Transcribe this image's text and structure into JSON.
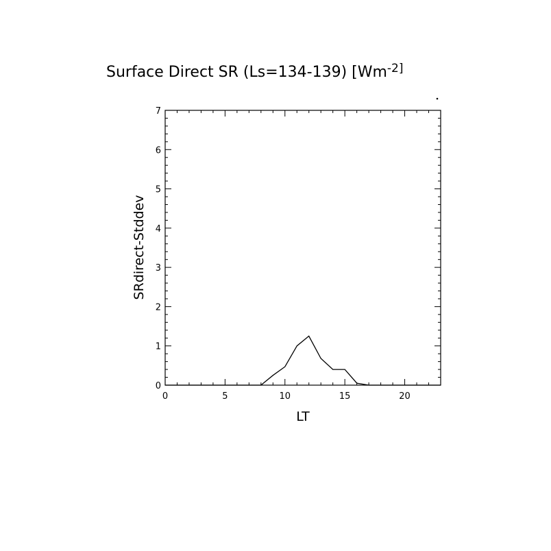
{
  "chart_data": {
    "type": "line",
    "title": "Surface Direct SR (Ls=134-139) [Wm",
    "title_superscript": "-2]",
    "xlabel": "LT",
    "ylabel": "SRdirect-Stddev",
    "xlim": [
      0,
      23
    ],
    "ylim": [
      0,
      7
    ],
    "x_major_ticks": [
      0,
      5,
      10,
      15,
      20
    ],
    "x_minor_step": 1,
    "y_major_ticks": [
      0,
      1,
      2,
      3,
      4,
      5,
      6,
      7
    ],
    "y_minor_step": 0.2,
    "grid": false,
    "series": [
      {
        "x": [
          0,
          1,
          2,
          3,
          4,
          5,
          6,
          7,
          8,
          9,
          10,
          11,
          12,
          13,
          14,
          15,
          16,
          17,
          18,
          19,
          20,
          21,
          22,
          23
        ],
        "values": [
          0,
          0,
          0,
          0,
          0,
          0,
          0,
          0,
          0,
          0.25,
          0.47,
          1.0,
          1.25,
          0.68,
          0.4,
          0.4,
          0.05,
          0,
          0,
          0,
          0,
          0,
          0,
          0
        ],
        "color": "#000000"
      }
    ]
  }
}
